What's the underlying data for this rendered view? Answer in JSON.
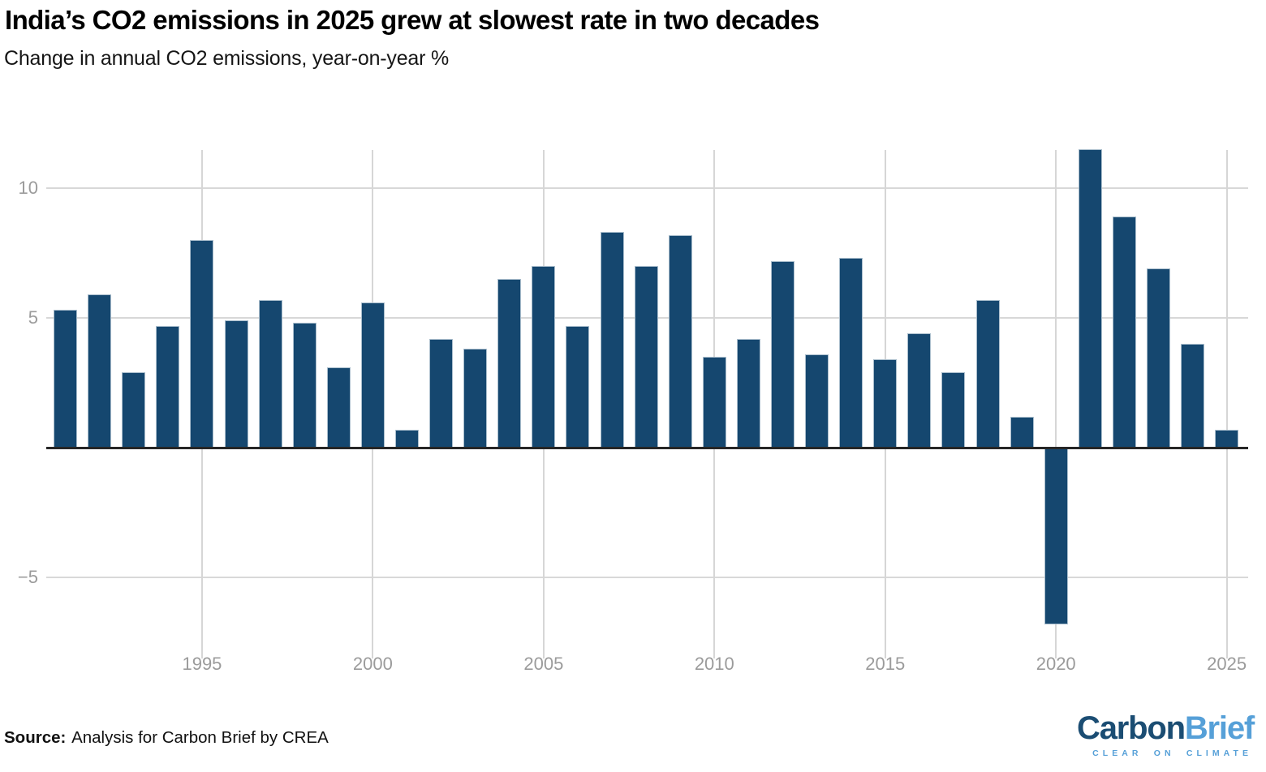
{
  "title": "India’s CO2 emissions in 2025 grew at slowest rate in two decades",
  "subtitle": "Change in annual CO2 emissions, year-on-year %",
  "source": {
    "label": "Source:",
    "text": "Analysis for Carbon Brief by CREA"
  },
  "logo": {
    "word_dark": "Carbon",
    "word_light": "Brief",
    "tagline": "CLEAR ON CLIMATE"
  },
  "colors": {
    "bar": "#15476f",
    "bar_stroke": "#a9bdcc",
    "grid": "#d8d8d8",
    "axis_line": "#262626",
    "tick_label": "#9b9b9b",
    "logo_dark": "#1b4d73",
    "logo_light": "#56a0d8"
  },
  "chart_data": {
    "type": "bar",
    "title": "India’s CO2 emissions in 2025 grew at slowest rate in two decades",
    "subtitle": "Change in annual CO2 emissions, year-on-year %",
    "xlabel": "",
    "ylabel": "Change in annual CO2 emissions, year-on-year %",
    "x": [
      1991,
      1992,
      1993,
      1994,
      1995,
      1996,
      1997,
      1998,
      1999,
      2000,
      2001,
      2002,
      2003,
      2004,
      2005,
      2006,
      2007,
      2008,
      2009,
      2010,
      2011,
      2012,
      2013,
      2014,
      2015,
      2016,
      2017,
      2018,
      2019,
      2020,
      2021,
      2022,
      2023,
      2024,
      2025
    ],
    "values": [
      5.3,
      5.9,
      2.9,
      4.7,
      8.0,
      4.9,
      5.7,
      4.8,
      3.1,
      5.6,
      0.7,
      4.2,
      3.8,
      6.5,
      7.0,
      4.7,
      8.3,
      7.0,
      8.2,
      3.5,
      4.2,
      7.2,
      3.6,
      7.3,
      3.4,
      4.4,
      2.9,
      5.7,
      1.2,
      -6.8,
      11.5,
      8.9,
      6.9,
      4.0,
      0.7
    ],
    "y_ticks": [
      {
        "value": 10,
        "label": "10"
      },
      {
        "value": 5,
        "label": "5"
      },
      {
        "value": -5,
        "label": "−5"
      }
    ],
    "x_ticks": [
      1995,
      2000,
      2005,
      2010,
      2015,
      2020,
      2025
    ],
    "ylim": [
      -7.6,
      11.7
    ],
    "grid": true,
    "legend_position": "none",
    "bar_color": "#15476f"
  }
}
